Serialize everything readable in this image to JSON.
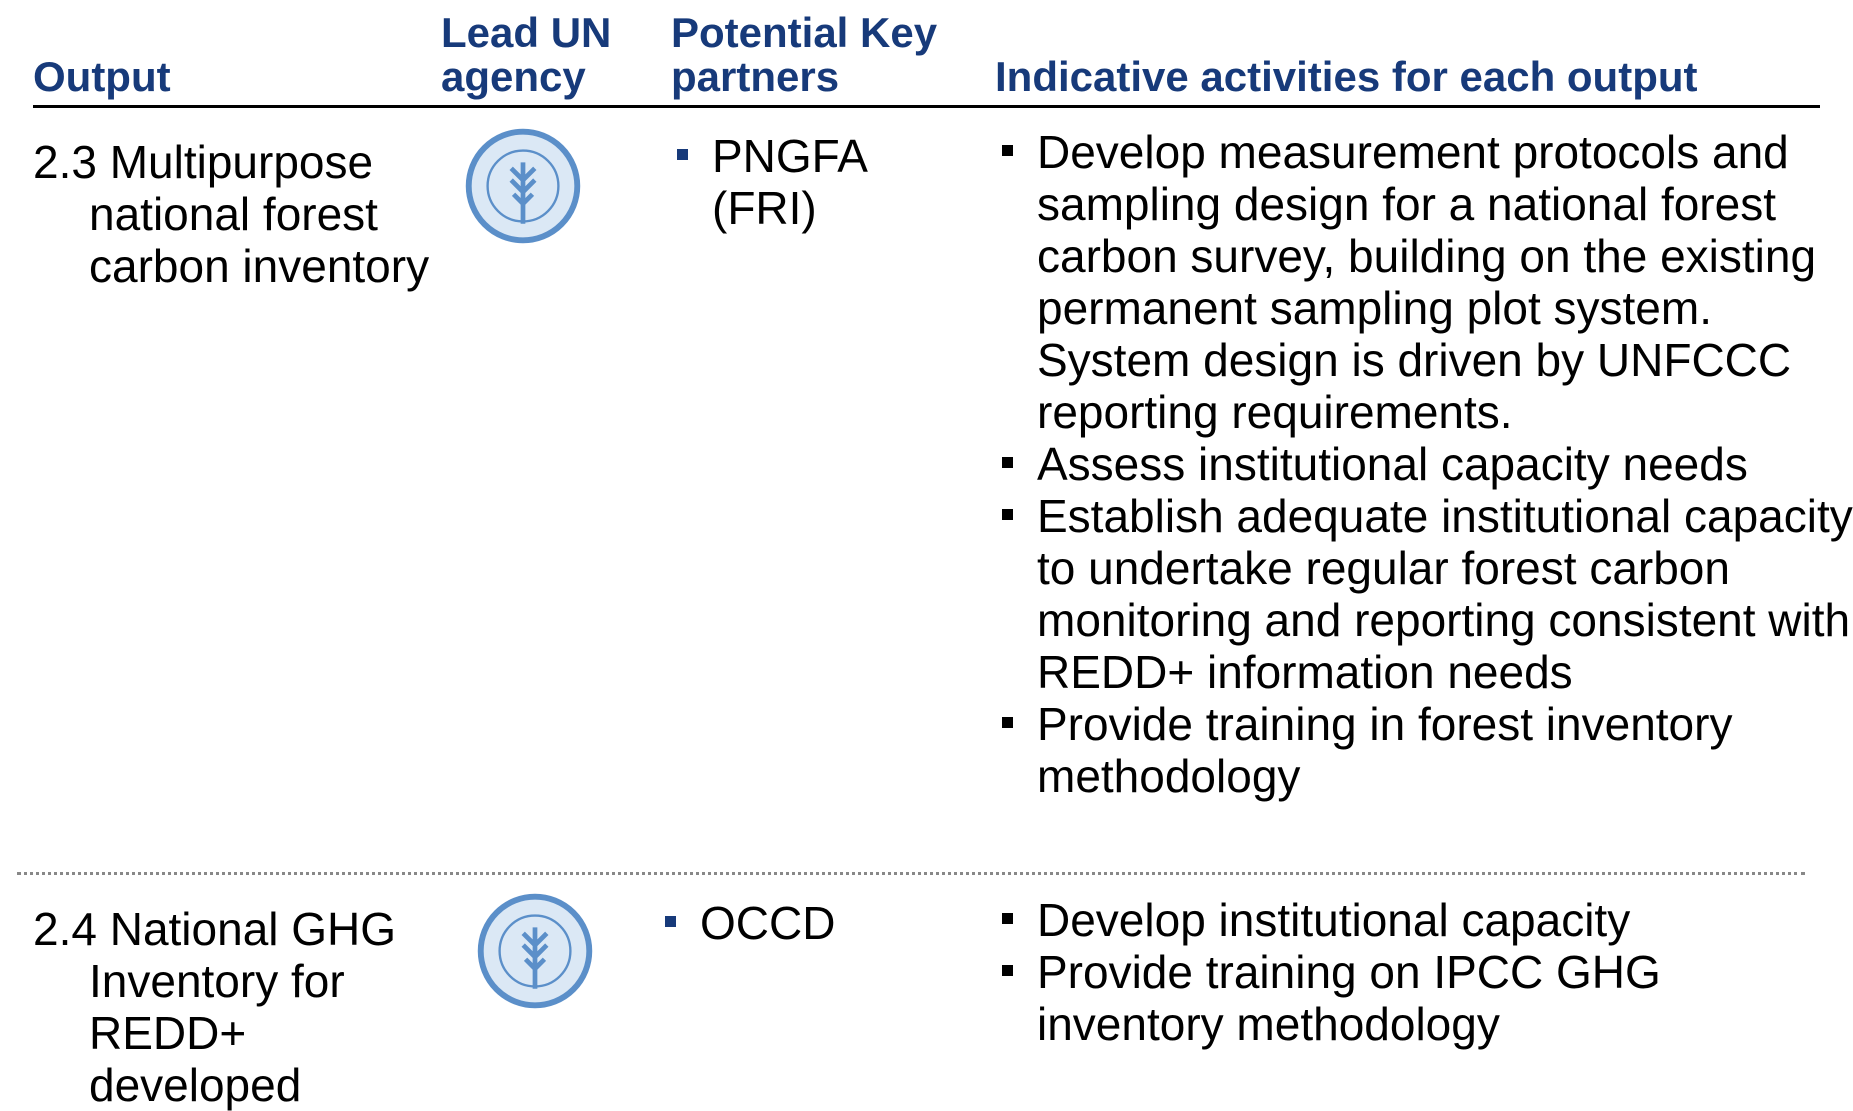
{
  "header": {
    "output": "Output",
    "agency": "Lead UN agency",
    "partners": "Potential Key partners",
    "activities": "Indicative activities for each output"
  },
  "rows": [
    {
      "output": "2.3 Multipurpose national forest carbon inventory",
      "partners": [
        "PNGFA (FRI)"
      ],
      "activities": [
        "Develop measurement protocols and sampling design for a national forest carbon survey, building on the existing permanent sampling plot system. System design is driven by UNFCCC reporting requirements.",
        "Assess institutional capacity needs",
        "Establish adequate institutional capacity to undertake regular forest carbon monitoring and reporting consistent with REDD+ information needs",
        "Provide training in forest inventory methodology"
      ]
    },
    {
      "output": "2.4 National GHG Inventory for REDD+ developed",
      "partners": [
        "OCCD"
      ],
      "activities": [
        "Develop institutional capacity",
        "Provide training on IPCC GHG inventory methodology"
      ]
    }
  ]
}
